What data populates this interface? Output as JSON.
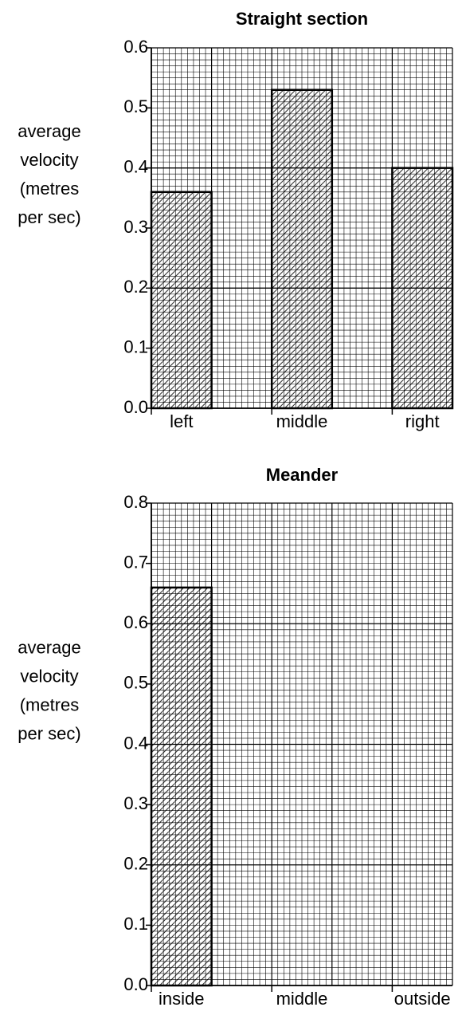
{
  "chart_data": [
    {
      "type": "bar",
      "title": "Straight section",
      "ylabel": [
        "average",
        "velocity",
        "(metres",
        "per sec)"
      ],
      "categories": [
        "left",
        "middle",
        "right"
      ],
      "values": [
        0.36,
        0.53,
        0.4
      ],
      "ylim": [
        0,
        0.6
      ],
      "yticks": [
        {
          "value": 0,
          "label": "0.0"
        },
        0.1,
        0.2,
        0.3,
        0.4,
        0.5,
        0.6
      ],
      "grid": true,
      "color": "#000000"
    },
    {
      "type": "bar",
      "title": "Meander",
      "ylabel": [
        "average",
        "velocity",
        "(metres",
        "per sec)"
      ],
      "categories": [
        "inside",
        "middle",
        "outside"
      ],
      "values": [
        0.66,
        null,
        null
      ],
      "ylim": [
        0,
        0.8
      ],
      "yticks": [
        {
          "value": 0,
          "label": "0.0"
        },
        0.1,
        0.2,
        0.3,
        0.4,
        0.5,
        0.6,
        0.7,
        0.8
      ],
      "grid": true,
      "color": "#000000"
    }
  ]
}
